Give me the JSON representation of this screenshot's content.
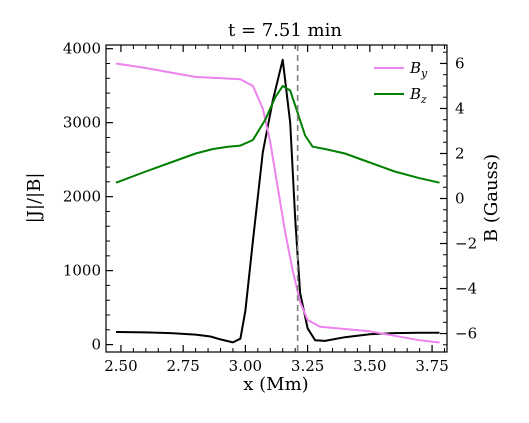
{
  "chart_data": {
    "type": "line",
    "title": "t = 7.51 min",
    "xlabel": "x (Mm)",
    "ylabel_left": "|J|/|B|",
    "ylabel_right": "B (Gauss)",
    "xlim": [
      2.44,
      3.81
    ],
    "ylim_left": [
      -100,
      4050
    ],
    "ylim_right": [
      -6.82,
      6.82
    ],
    "x_ticks": [
      2.5,
      2.75,
      3.0,
      3.25,
      3.5,
      3.75
    ],
    "x_tick_labels": [
      "2.50",
      "2.75",
      "3.00",
      "3.25",
      "3.50",
      "3.75"
    ],
    "left_ticks": [
      0,
      1000,
      2000,
      3000,
      4000
    ],
    "left_tick_labels": [
      "0",
      "1000",
      "2000",
      "3000",
      "4000"
    ],
    "right_ticks": [
      -6,
      -4,
      -2,
      0,
      2,
      4,
      6
    ],
    "right_tick_labels": [
      "−6",
      "−4",
      "−2",
      "0",
      "2",
      "4",
      "6"
    ],
    "vline_x": 3.21,
    "legend_position": "top-right",
    "grid": false,
    "series": [
      {
        "name": "",
        "axis": "left",
        "color": "#000000",
        "x": [
          2.48,
          2.6,
          2.7,
          2.8,
          2.86,
          2.9,
          2.95,
          2.98,
          3.0,
          3.03,
          3.07,
          3.11,
          3.15,
          3.18,
          3.2,
          3.22,
          3.25,
          3.28,
          3.32,
          3.4,
          3.5,
          3.6,
          3.7,
          3.78
        ],
        "values": [
          170,
          165,
          155,
          135,
          110,
          70,
          30,
          80,
          460,
          1400,
          2600,
          3300,
          3850,
          3000,
          1700,
          700,
          220,
          60,
          50,
          100,
          140,
          155,
          160,
          160
        ]
      },
      {
        "name": "B_y",
        "axis": "right",
        "color": "#ee82ee",
        "x": [
          2.48,
          2.6,
          2.7,
          2.8,
          2.9,
          2.98,
          3.03,
          3.07,
          3.1,
          3.13,
          3.16,
          3.19,
          3.22,
          3.25,
          3.3,
          3.4,
          3.5,
          3.6,
          3.7,
          3.78
        ],
        "values": [
          6.0,
          5.8,
          5.6,
          5.4,
          5.35,
          5.3,
          5.0,
          4.0,
          2.5,
          0.5,
          -1.5,
          -3.2,
          -4.6,
          -5.4,
          -5.7,
          -5.8,
          -5.9,
          -6.1,
          -6.3,
          -6.4
        ]
      },
      {
        "name": "B_z",
        "axis": "right",
        "color": "#008000",
        "x": [
          2.48,
          2.6,
          2.7,
          2.8,
          2.87,
          2.93,
          2.98,
          3.03,
          3.08,
          3.12,
          3.15,
          3.18,
          3.21,
          3.24,
          3.27,
          3.32,
          3.4,
          3.5,
          3.6,
          3.7,
          3.78
        ],
        "values": [
          0.7,
          1.2,
          1.6,
          2.0,
          2.2,
          2.3,
          2.35,
          2.6,
          3.5,
          4.5,
          5.0,
          4.8,
          3.8,
          2.8,
          2.3,
          2.2,
          2.0,
          1.6,
          1.2,
          0.9,
          0.7
        ]
      }
    ]
  }
}
